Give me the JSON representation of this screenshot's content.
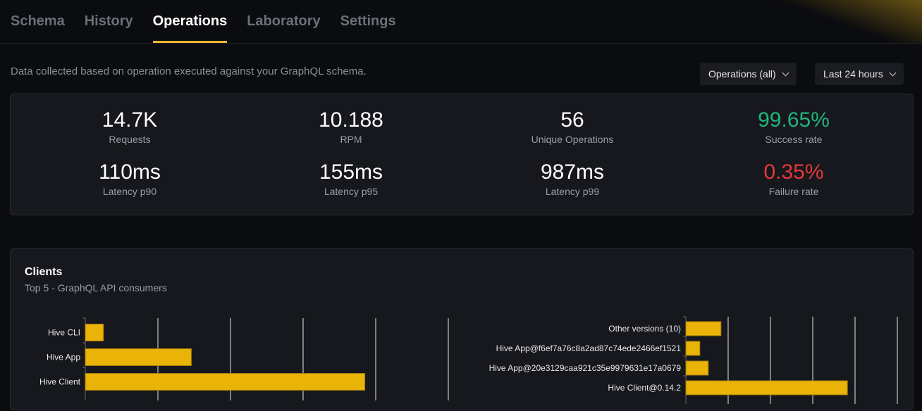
{
  "tabs": [
    {
      "label": "Schema"
    },
    {
      "label": "History"
    },
    {
      "label": "Operations",
      "active": true
    },
    {
      "label": "Laboratory"
    },
    {
      "label": "Settings"
    }
  ],
  "description": "Data collected based on operation executed against your GraphQL schema.",
  "filters": {
    "operations": "Operations (all)",
    "period": "Last 24 hours"
  },
  "stats": [
    {
      "value": "14.7K",
      "label": "Requests"
    },
    {
      "value": "10.188",
      "label": "RPM"
    },
    {
      "value": "56",
      "label": "Unique Operations"
    },
    {
      "value": "99.65%",
      "label": "Success rate",
      "color": "#1fb57a"
    },
    {
      "value": "110ms",
      "label": "Latency p90"
    },
    {
      "value": "155ms",
      "label": "Latency p95"
    },
    {
      "value": "987ms",
      "label": "Latency p99"
    },
    {
      "value": "0.35%",
      "label": "Failure rate",
      "color": "#e5383b"
    }
  ],
  "clients": {
    "title": "Clients",
    "subtitle": "Top 5 - GraphQL API consumers"
  },
  "chart_data": [
    {
      "type": "bar",
      "orientation": "horizontal",
      "categories": [
        "Hive CLI",
        "Hive App",
        "Hive Client"
      ],
      "values": [
        0.25,
        1.46,
        3.85
      ],
      "xlim": [
        0,
        5
      ],
      "grid": true,
      "color": "#eab308"
    },
    {
      "type": "bar",
      "orientation": "horizontal",
      "categories": [
        "Other versions (10)",
        "Hive App@f6ef7a76c8a2ad87c74ede2466ef1521",
        "Hive App@20e3129caa921c35e9979631e17a0679",
        "Hive Client@0.14.2"
      ],
      "values": [
        0.83,
        0.33,
        0.53,
        3.82
      ],
      "xlim": [
        0,
        5
      ],
      "grid": true,
      "color": "#eab308"
    }
  ]
}
